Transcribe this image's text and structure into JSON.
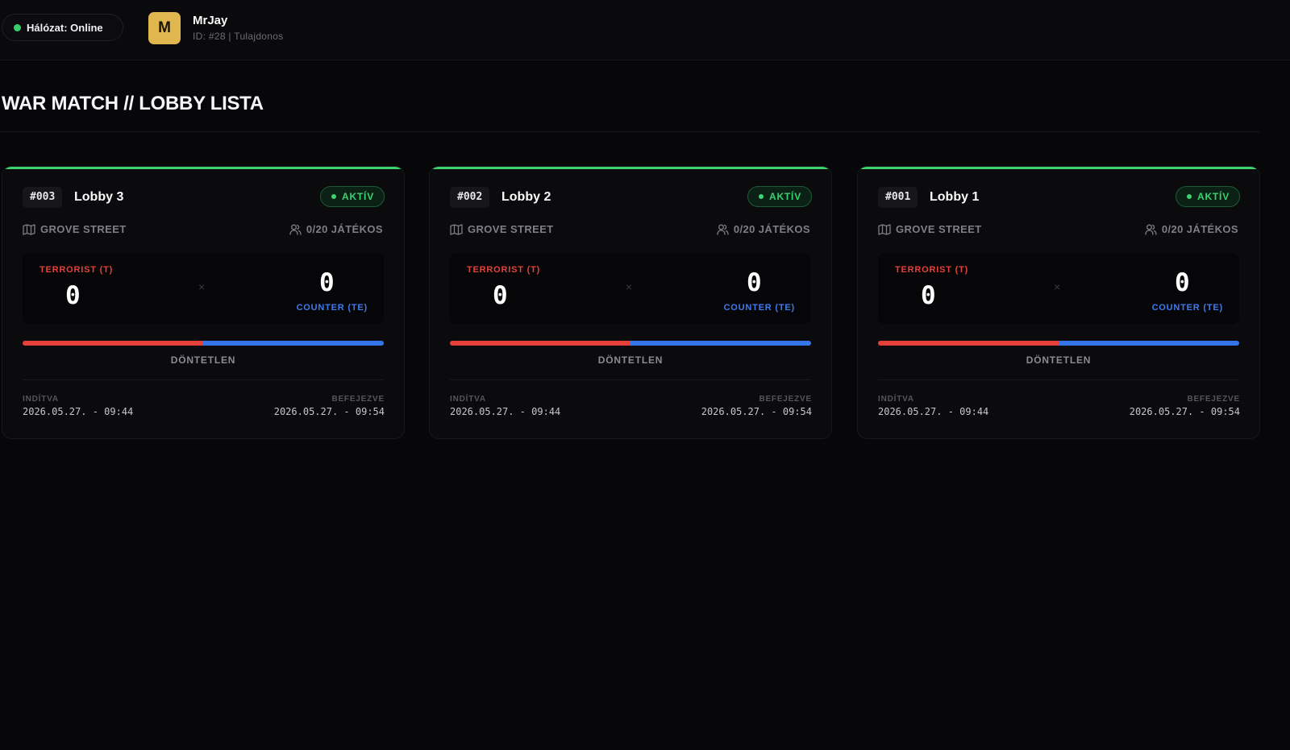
{
  "header": {
    "network_status": "Hálózat: Online",
    "network_color": "#37d06b",
    "user": {
      "avatar_letter": "M",
      "name": "MrJay",
      "meta": "ID: #28 | Tulajdonos"
    }
  },
  "page": {
    "title": "WAR MATCH // LOBBY LISTA"
  },
  "colors": {
    "active": "#3bd36f",
    "terrorist": "#e5413a",
    "counter": "#3e7bef",
    "avatar": "#e0b64f"
  },
  "lobbies": [
    {
      "id": "#003",
      "name": "Lobby 3",
      "status": "AKTÍV",
      "map": "GROVE STREET",
      "players": "0/20 JÁTÉKOS",
      "map_icon": "map-icon",
      "players_icon": "users-icon",
      "t_label": "TERRORIST (T)",
      "t_score": "0",
      "vs": "×",
      "ct_score": "0",
      "ct_label": "COUNTER (TE)",
      "t_share": 0.5,
      "result": "DÖNTETLEN",
      "started_label": "INDÍTVA",
      "started": "2026.05.27. - 09:44",
      "ended_label": "BEFEJEZVE",
      "ended": "2026.05.27. - 09:54"
    },
    {
      "id": "#002",
      "name": "Lobby 2",
      "status": "AKTÍV",
      "map": "GROVE STREET",
      "players": "0/20 JÁTÉKOS",
      "map_icon": "map-icon",
      "players_icon": "users-icon",
      "t_label": "TERRORIST (T)",
      "t_score": "0",
      "vs": "×",
      "ct_score": "0",
      "ct_label": "COUNTER (TE)",
      "t_share": 0.5,
      "result": "DÖNTETLEN",
      "started_label": "INDÍTVA",
      "started": "2026.05.27. - 09:44",
      "ended_label": "BEFEJEZVE",
      "ended": "2026.05.27. - 09:54"
    },
    {
      "id": "#001",
      "name": "Lobby 1",
      "status": "AKTÍV",
      "map": "GROVE STREET",
      "players": "0/20 JÁTÉKOS",
      "map_icon": "map-icon",
      "players_icon": "users-icon",
      "t_label": "TERRORIST (T)",
      "t_score": "0",
      "vs": "×",
      "ct_score": "0",
      "ct_label": "COUNTER (TE)",
      "t_share": 0.5,
      "result": "DÖNTETLEN",
      "started_label": "INDÍTVA",
      "started": "2026.05.27. - 09:44",
      "ended_label": "BEFEJEZVE",
      "ended": "2026.05.27. - 09:54"
    }
  ]
}
